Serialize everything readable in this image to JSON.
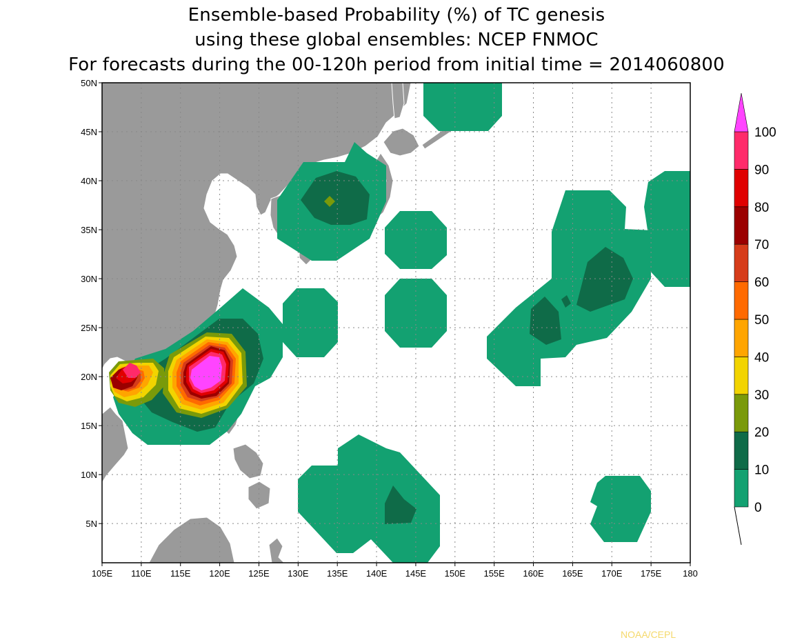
{
  "title": {
    "line1": "Ensemble-based Probability (%) of TC genesis",
    "line2": "using these global ensembles:   NCEP FNMOC",
    "line3": "For forecasts during the 00-120h period from initial time = 2014060800"
  },
  "map": {
    "lon_range": [
      105,
      180
    ],
    "lat_range": [
      1,
      50
    ],
    "x_ticks": [
      "105E",
      "110E",
      "115E",
      "120E",
      "125E",
      "130E",
      "135E",
      "140E",
      "145E",
      "150E",
      "155E",
      "160E",
      "165E",
      "170E",
      "175E",
      "180"
    ],
    "y_ticks": [
      "5N",
      "10N",
      "15N",
      "20N",
      "25N",
      "30N",
      "35N",
      "40N",
      "45N",
      "50N"
    ],
    "land_color": "#9a9a9a",
    "gridlines": "dotted"
  },
  "colorbar": {
    "levels": [
      "0",
      "10",
      "20",
      "30",
      "40",
      "50",
      "60",
      "70",
      "80",
      "90",
      "100"
    ],
    "colors": [
      "#13a171",
      "#0f6b48",
      "#7a9a0a",
      "#f2d400",
      "#ffa500",
      "#ff6a00",
      "#d63c1a",
      "#9b0000",
      "#e00000",
      "#ff2a6a"
    ],
    "overflow_color": "#ff44ff"
  },
  "credit": "NOAA/CEPL"
}
